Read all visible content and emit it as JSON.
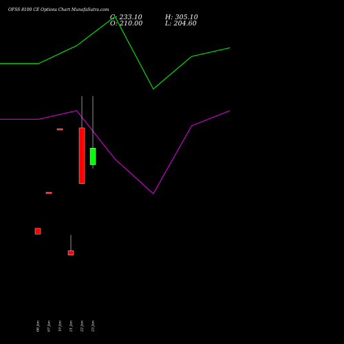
{
  "chart_data": {
    "type": "candlestick",
    "title": "OFSS 8100  CE Options  Chart MunafaSutra.com",
    "ohlc": {
      "close": "C: 233.10",
      "high": "H: 305.10",
      "open": "O: 210.00",
      "low": "L: 204.60"
    },
    "dates": [
      "06 Jan",
      "07 Jan",
      "10 Jan",
      "21 Jan",
      "22 Jan",
      "23 Jan"
    ],
    "candles": [
      {
        "date": "06 Jan",
        "open": 122,
        "high": 122,
        "low": 114,
        "close": 114
      },
      {
        "date": "07 Jan",
        "open": 172,
        "high": 172,
        "low": 171,
        "close": 171
      },
      {
        "date": "10 Jan",
        "open": 260,
        "high": 260,
        "low": 259,
        "close": 259
      },
      {
        "date": "21 Jan",
        "open": 91,
        "high": 113,
        "low": 85,
        "close": 85
      },
      {
        "date": "22 Jan",
        "open": 261,
        "high": 305,
        "low": 184,
        "close": 184
      },
      {
        "date": "23 Jan",
        "open": 210,
        "high": 305.1,
        "low": 204.6,
        "close": 233.1
      }
    ],
    "y_range": [
      0,
      400
    ],
    "bands": [
      {
        "color": "#00dd00",
        "values": [
          350,
          350,
          375,
          415,
          315,
          360,
          372
        ]
      },
      {
        "color": "#cc00cc",
        "values": [
          273,
          273,
          285,
          218,
          170,
          264,
          285
        ]
      }
    ],
    "grid": false,
    "colors": {
      "up": "#00ff00",
      "down": "#ff0000",
      "background": "#000000",
      "text": "#ffffff"
    }
  }
}
